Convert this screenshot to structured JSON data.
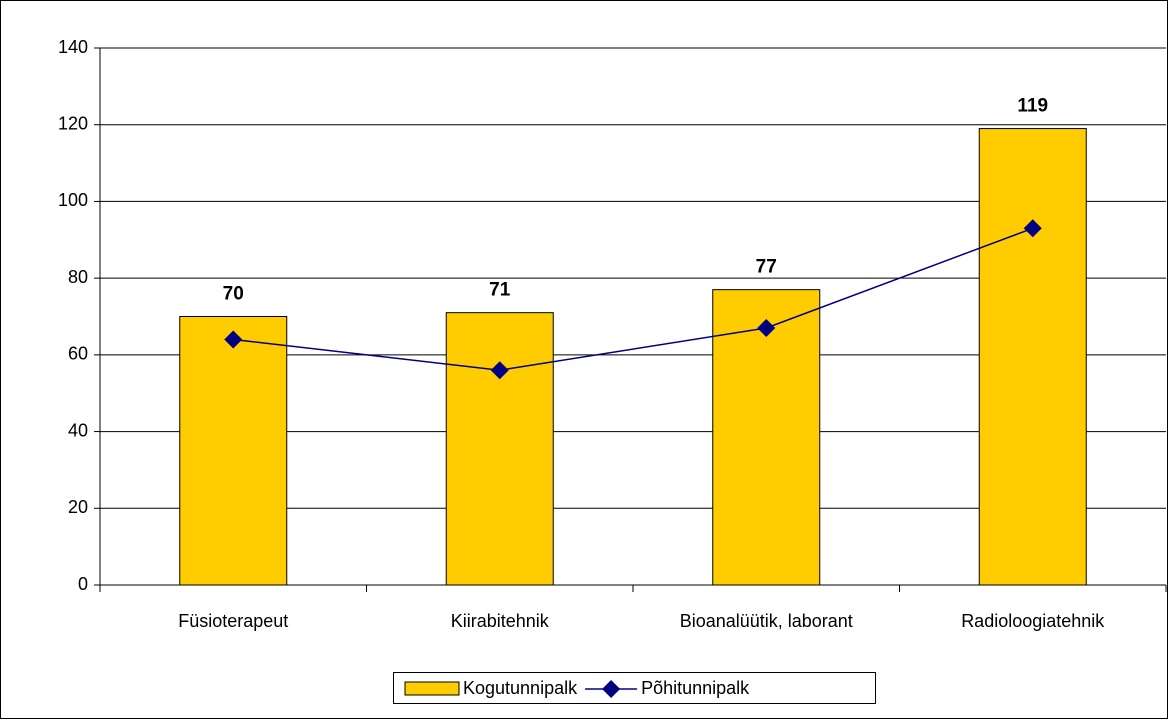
{
  "chart_data": {
    "type": "bar_line",
    "categories": [
      "Füsioterapeut",
      "Kiirabitehnik",
      "Bioanalüütik, laborant",
      "Radioloogiatehnik"
    ],
    "series": [
      {
        "name": "Kogutunnipalk",
        "type": "bar",
        "color": "#ffcc00",
        "values": [
          70,
          71,
          77,
          119
        ]
      },
      {
        "name": "Põhitunnipalk",
        "type": "line",
        "color": "#000080",
        "values": [
          64,
          56,
          67,
          93
        ]
      }
    ],
    "ylim": [
      0,
      140
    ],
    "yticks": [
      0,
      20,
      40,
      60,
      80,
      100,
      120,
      140
    ],
    "grid": true,
    "data_labels_series": 0,
    "legend": "bottom"
  }
}
